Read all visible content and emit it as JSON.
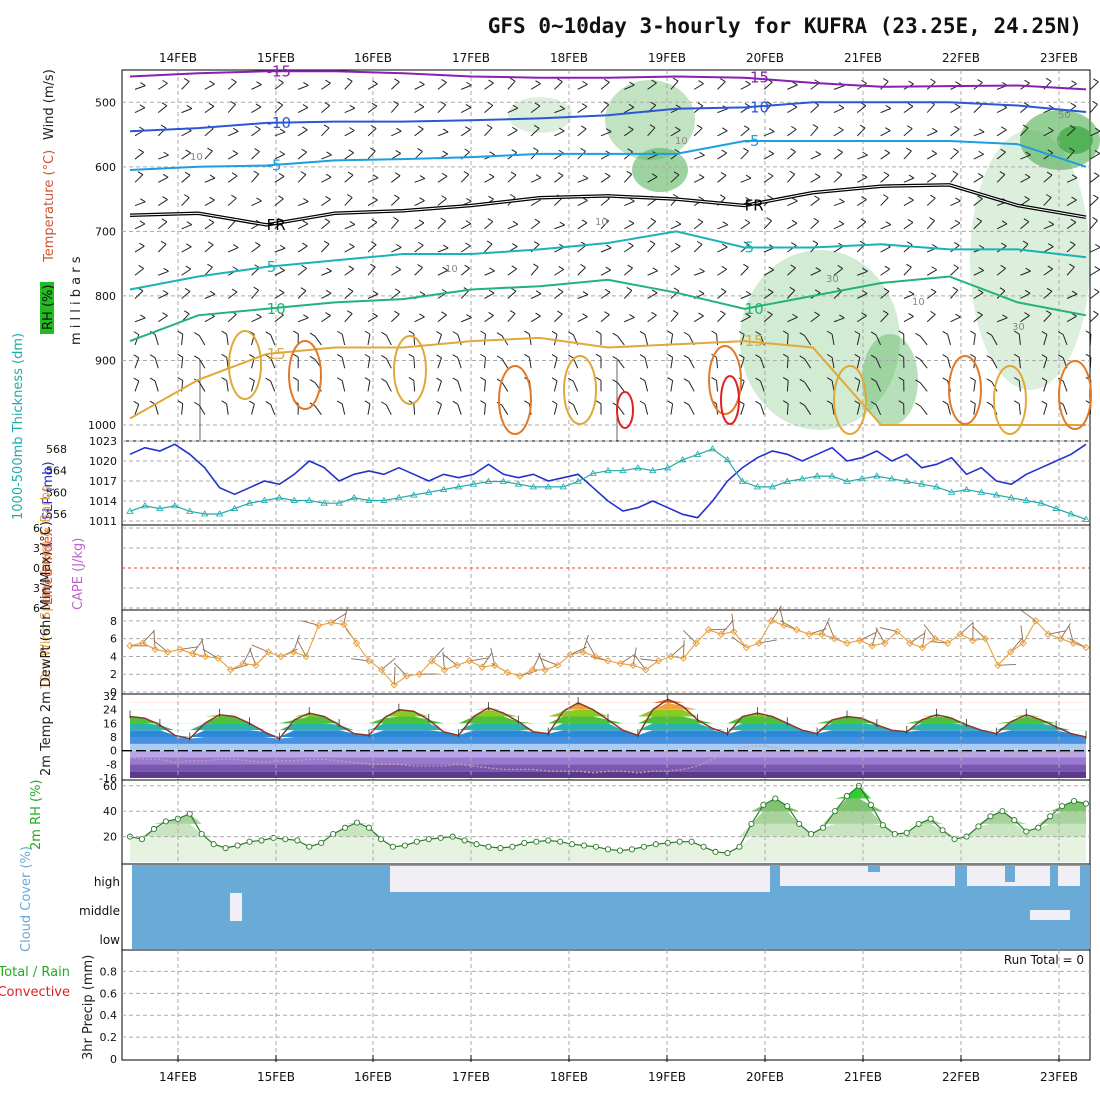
{
  "title": "GFS 0~10day 3-hourly for KUFRA (23.25E, 24.25N)",
  "dates": [
    "14FEB",
    "15FEB",
    "16FEB",
    "17FEB",
    "18FEB",
    "19FEB",
    "20FEB",
    "21FEB",
    "22FEB",
    "23FEB"
  ],
  "colors": {
    "slp": "#2233cc",
    "thick": "#22aaaa",
    "wind": "#e8a040",
    "rh": "#22aa22",
    "cloud": "#6aaad6",
    "cloud_clear": "#f2eef6",
    "freezing": "#000000",
    "cape": "#bb66cc",
    "lifted": "#dd4433",
    "precip_total": "#22aa22",
    "precip_conv": "#dd2222"
  },
  "chart_data": [
    {
      "type": "heatmap",
      "panel": "upper-air",
      "ylabel_parts": [
        "RH (%)",
        "Temperature (°C)",
        "Wind (m/s)"
      ],
      "ylabel_units": "m i l l i b a r s",
      "yticks": [
        500,
        600,
        700,
        800,
        900,
        1000
      ],
      "ylim": [
        1000,
        450
      ],
      "isotherms": [
        {
          "label": "-15",
          "color": "#8a1fb0",
          "values": [
            460,
            455,
            452,
            452,
            455,
            460,
            462,
            462,
            460,
            462,
            470,
            476,
            475,
            474,
            480
          ]
        },
        {
          "label": "-10",
          "color": "#2b57d6",
          "values": [
            545,
            540,
            532,
            530,
            530,
            528,
            525,
            520,
            510,
            508,
            500,
            500,
            500,
            505,
            515
          ]
        },
        {
          "label": "-5",
          "color": "#1c9ee0",
          "values": [
            605,
            600,
            598,
            590,
            588,
            585,
            580,
            580,
            580,
            560,
            560,
            560,
            560,
            565,
            600
          ]
        },
        {
          "label": "FR",
          "color": "#000000",
          "values": [
            675,
            672,
            690,
            672,
            668,
            660,
            648,
            645,
            650,
            660,
            640,
            630,
            628,
            660,
            678
          ]
        },
        {
          "label": "5",
          "color": "#1bb3b3",
          "values": [
            790,
            770,
            755,
            745,
            735,
            735,
            728,
            718,
            700,
            725,
            725,
            720,
            728,
            728,
            740
          ]
        },
        {
          "label": "10",
          "color": "#22b27a",
          "values": [
            870,
            830,
            820,
            810,
            805,
            790,
            785,
            775,
            795,
            820,
            800,
            780,
            770,
            810,
            830
          ]
        },
        {
          "label": "15",
          "color": "#e0a838",
          "values": [
            990,
            930,
            890,
            880,
            880,
            870,
            865,
            880,
            875,
            870,
            880,
            1000,
            1000,
            1000,
            1000
          ]
        }
      ],
      "contour_labels": [
        "10",
        "30",
        "50"
      ]
    },
    {
      "type": "line",
      "panel": "pressure",
      "ylabel_left": "1000-500mb Thickness (dm)",
      "ylabel_right": "SLP (mb)",
      "left_ticks": [
        556,
        560,
        564,
        568
      ],
      "right_ticks": [
        1011,
        1014,
        1017,
        1020,
        1023
      ],
      "series": [
        {
          "name": "SLP (mb)",
          "color": "#2233cc",
          "values": [
            1021,
            1022,
            1021.5,
            1022.5,
            1021,
            1019,
            1016,
            1015,
            1016,
            1017,
            1016.5,
            1018,
            1020,
            1019,
            1017,
            1018,
            1018.5,
            1018,
            1019,
            1018,
            1017,
            1018,
            1017.5,
            1018,
            1019.5,
            1018,
            1017.5,
            1018,
            1017,
            1017.5,
            1018,
            1016,
            1014,
            1012.5,
            1013,
            1014,
            1013,
            1012,
            1011.5,
            1014,
            1017,
            1019,
            1020.5,
            1021.5,
            1021,
            1020,
            1021,
            1022,
            1020,
            1020.5,
            1021.5,
            1020,
            1021,
            1019,
            1019.5,
            1020.5,
            1018,
            1019,
            1017,
            1016.5,
            1018,
            1019,
            1020,
            1021,
            1022.5
          ]
        },
        {
          "name": "1000-500mb Thickness (dm)",
          "color": "#22aaaa",
          "values": [
            556.5,
            557.5,
            557,
            557.5,
            556.5,
            556,
            556,
            557,
            558,
            558.5,
            559,
            558.5,
            558.5,
            558,
            558,
            559,
            558.5,
            558.5,
            559,
            559.5,
            560,
            560.5,
            561,
            561.5,
            562,
            562,
            561.5,
            561,
            561,
            561,
            562,
            563.5,
            564,
            564,
            564.5,
            564,
            564.5,
            566,
            567,
            568,
            566,
            562,
            561,
            561,
            562,
            562.5,
            563,
            563,
            562,
            562.5,
            563,
            562.5,
            562,
            561.5,
            561,
            560,
            560.5,
            560,
            559.5,
            559,
            558.5,
            558,
            557,
            556,
            555
          ]
        }
      ]
    },
    {
      "type": "line",
      "panel": "instability",
      "ylabel_left": "Lifted Index",
      "ylabel_right": "CAPE (J/kg)",
      "left_ticks": [
        6,
        3,
        0,
        -3,
        -6
      ],
      "values": []
    },
    {
      "type": "line",
      "panel": "wind10m",
      "ylabel": "10m Wind Speed (m/s) & Barbs",
      "yticks": [
        0,
        2,
        4,
        6,
        8
      ],
      "ylim": [
        0,
        9
      ],
      "values": [
        5.2,
        5.5,
        4.8,
        4.5,
        4.8,
        4.3,
        4.0,
        3.8,
        2.5,
        3.2,
        3.0,
        4.5,
        4.0,
        4.5,
        4.0,
        7.5,
        7.8,
        7.6,
        5.5,
        3.5,
        2.5,
        0.8,
        1.8,
        2.0,
        3.5,
        2.5,
        3.0,
        3.5,
        2.8,
        3.0,
        2.2,
        1.8,
        2.5,
        2.5,
        3.0,
        4.2,
        4.5,
        4.0,
        3.5,
        3.2,
        3.0,
        2.5,
        3.5,
        4.0,
        3.8,
        5.5,
        7.0,
        6.5,
        6.8,
        5.0,
        5.5,
        8.0,
        7.5,
        7.0,
        6.5,
        6.5,
        6.0,
        5.5,
        5.8,
        5.2,
        5.5,
        6.8,
        5.5,
        5.0,
        6.0,
        5.5,
        6.5,
        5.8,
        6.0,
        3.0,
        4.5,
        5.5,
        8.0,
        6.5,
        6.0,
        5.5,
        5.0
      ]
    },
    {
      "type": "area",
      "panel": "temperature",
      "ylabel": "2m Temp 2m DewPt (6hr Min/Max) (°C)",
      "yticks": [
        -16,
        -8,
        0,
        8,
        16,
        24,
        32
      ],
      "ylim": [
        -16,
        32
      ],
      "series": [
        {
          "name": "2m Temp",
          "values": [
            20,
            19,
            15,
            9,
            7,
            16,
            21,
            20,
            16,
            11,
            7,
            18,
            22,
            20,
            15,
            10,
            9,
            19,
            24,
            23,
            18,
            11,
            9,
            20,
            25,
            22,
            17,
            11,
            10,
            23,
            28,
            24,
            18,
            12,
            9,
            24,
            30,
            26,
            18,
            13,
            10,
            20,
            22,
            20,
            16,
            12,
            10,
            18,
            20,
            19,
            15,
            12,
            11,
            18,
            21,
            19,
            15,
            12,
            10,
            17,
            21,
            18,
            14,
            10,
            8
          ]
        },
        {
          "name": "2m DewPt",
          "values": [
            -4,
            -5,
            -5,
            -7,
            -6,
            -6,
            -5,
            -5,
            -6,
            -7,
            -6,
            -6,
            -5,
            -5,
            -6,
            -7,
            -8,
            -8,
            -8,
            -9,
            -9,
            -9,
            -8,
            -9,
            -10,
            -11,
            -11,
            -11,
            -12,
            -12,
            -12,
            -13,
            -12,
            -12,
            -13,
            -12,
            -12,
            -11,
            -9,
            -5,
            -2,
            2,
            3,
            2,
            0,
            -1,
            -1,
            0,
            1,
            0,
            -1,
            0,
            1,
            0,
            -2,
            -2,
            -1,
            -3,
            -3,
            -2,
            -2,
            -1,
            -1,
            -1,
            0
          ]
        }
      ]
    },
    {
      "type": "area",
      "panel": "rh2m",
      "ylabel": "2m RH (%)",
      "yticks": [
        20,
        40,
        60
      ],
      "ylim": [
        0,
        63
      ],
      "values": [
        20,
        18,
        26,
        32,
        34,
        38,
        22,
        14,
        11,
        13,
        16,
        17,
        19,
        18,
        17,
        12,
        15,
        22,
        27,
        31,
        27,
        18,
        12,
        13,
        16,
        18,
        19,
        20,
        17,
        14,
        12,
        11,
        12,
        15,
        16,
        17,
        16,
        14,
        13,
        12,
        10,
        9,
        10,
        12,
        14,
        15,
        16,
        16,
        12,
        8,
        7,
        12,
        30,
        45,
        50,
        44,
        30,
        22,
        27,
        40,
        52,
        60,
        45,
        29,
        22,
        23,
        30,
        34,
        25,
        18,
        20,
        28,
        36,
        40,
        33,
        24,
        27,
        36,
        44,
        48,
        46
      ]
    },
    {
      "type": "bar",
      "panel": "cloud",
      "ylabel": "Cloud Cover (%)",
      "levels": [
        "high",
        "middle",
        "low"
      ]
    },
    {
      "type": "bar",
      "panel": "precip",
      "ylabel_parts": [
        "Total / Rain",
        "Convective",
        "3hr Precip (mm)"
      ],
      "yticks": [
        0,
        0.2,
        0.4,
        0.6,
        0.8
      ],
      "ylim": [
        0,
        0.95
      ],
      "run_total": "Run Total = 0",
      "values": []
    }
  ]
}
